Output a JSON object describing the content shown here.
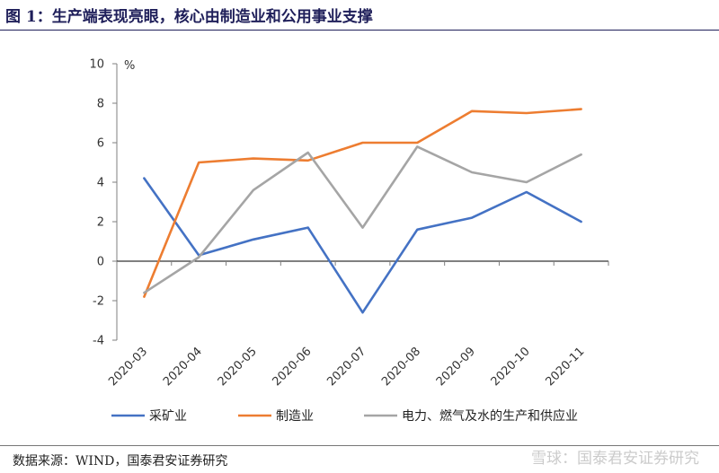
{
  "figure": {
    "title": "图 1：生产端表现亮眼，核心由制造业和公用事业支撑",
    "source": "数据来源：WIND，国泰君安证券研究",
    "watermark": "雪球：国泰君安证券研究"
  },
  "chart_data": {
    "type": "line",
    "title": "",
    "ylabel": "%",
    "xlabel": "",
    "ylim": [
      -4,
      10
    ],
    "yticks": [
      -4,
      -2,
      0,
      2,
      4,
      6,
      8,
      10
    ],
    "grid": false,
    "legend_position": "bottom",
    "categories": [
      "2020-03",
      "2020-04",
      "2020-05",
      "2020-06",
      "2020-07",
      "2020-08",
      "2020-09",
      "2020-10",
      "2020-11"
    ],
    "series": [
      {
        "name": "采矿业",
        "color": "#4472c4",
        "values": [
          4.2,
          0.3,
          1.1,
          1.7,
          -2.6,
          1.6,
          2.2,
          3.5,
          2.0
        ]
      },
      {
        "name": "制造业",
        "color": "#ed7d31",
        "values": [
          -1.8,
          5.0,
          5.2,
          5.1,
          6.0,
          6.0,
          7.6,
          7.5,
          7.7
        ]
      },
      {
        "name": "电力、燃气及水的生产和供应业",
        "color": "#a5a5a5",
        "values": [
          -1.6,
          0.2,
          3.6,
          5.5,
          1.7,
          5.8,
          4.5,
          4.0,
          5.4
        ]
      }
    ]
  }
}
